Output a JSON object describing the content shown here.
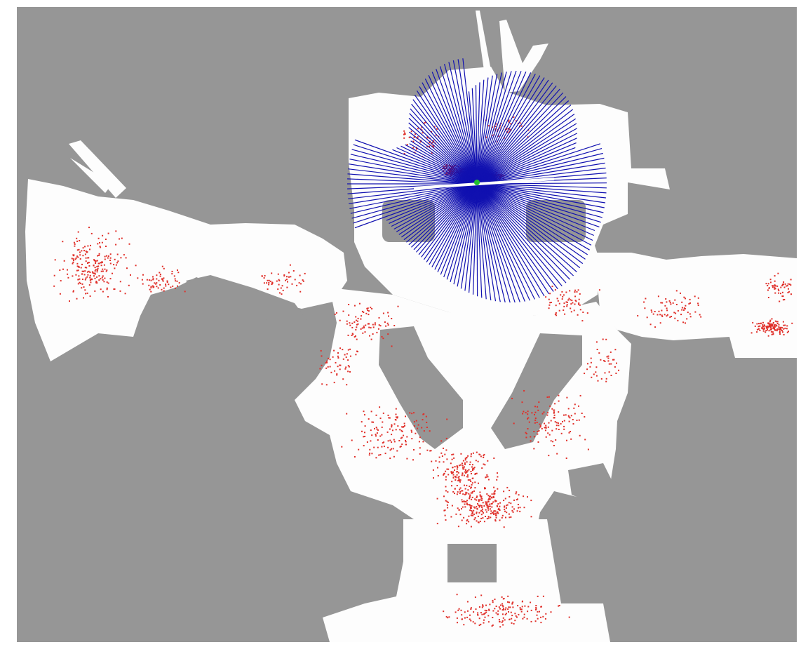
{
  "map": {
    "colors": {
      "unknown": "#969696",
      "free": "#fdfdfd",
      "particle": "#e0302a",
      "beam": "#1010b0",
      "robot": "#22c030",
      "frame": "#ffffff"
    },
    "layers": [
      "occupancy-grid",
      "particle-cloud",
      "laser-scan",
      "robot-pose"
    ],
    "icons": {
      "robot": "robot-pose-marker"
    }
  }
}
